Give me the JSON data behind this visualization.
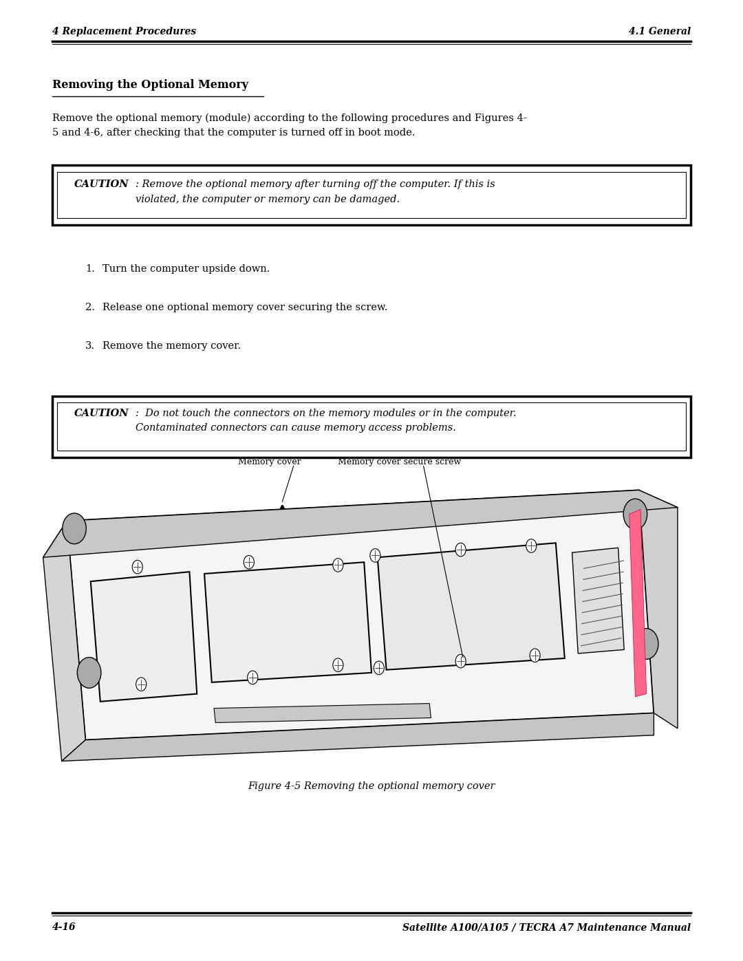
{
  "page_width": 10.8,
  "page_height": 13.97,
  "bg_color": "#ffffff",
  "header_left": "4 Replacement Procedures",
  "header_right": "4.1 General",
  "footer_left": "4-16",
  "footer_right": "Satellite A100/A105 / TECRA A7 Maintenance Manual",
  "section_title": "Removing the Optional Memory",
  "intro_text": "Remove the optional memory (module) according to the following procedures and Figures 4-\n5 and 4-6, after checking that the computer is turned off in boot mode.",
  "caution1_bold": "CAUTION",
  "caution1_text": ": Remove the optional memory after turning off the computer. If this is\nviolated, the computer or memory can be damaged.",
  "steps": [
    "Turn the computer upside down.",
    "Release one optional memory cover securing the screw.",
    "Remove the memory cover."
  ],
  "caution2_bold": "CAUTION",
  "caution2_text": ":  Do not touch the connectors on the memory modules or in the computer.\nContaminated connectors can cause memory access problems.",
  "fig_label1": "Memory cover",
  "fig_label2": "Memory cover secure screw",
  "fig_caption": "Figure 4-5 Removing the optional memory cover"
}
